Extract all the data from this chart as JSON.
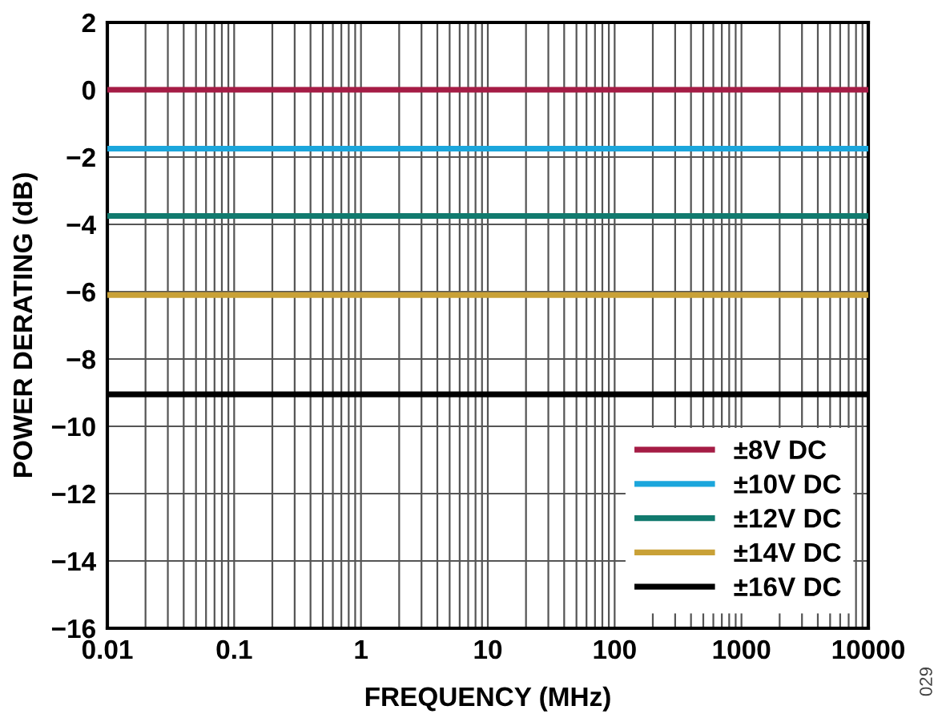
{
  "chart_data": {
    "type": "line",
    "xlabel": "FREQUENCY (MHz)",
    "ylabel": "POWER DERATING (dB)",
    "log": "x",
    "x": [
      0.01,
      10000
    ],
    "series": [
      {
        "name": "±8V DC",
        "color": "#a51c45",
        "values": [
          0,
          0
        ]
      },
      {
        "name": "±10V DC",
        "color": "#1ba6dc",
        "values": [
          -1.75,
          -1.75
        ]
      },
      {
        "name": "±12V DC",
        "color": "#117a6e",
        "values": [
          -3.75,
          -3.75
        ]
      },
      {
        "name": "±14V DC",
        "color": "#c9a137",
        "values": [
          -6.1,
          -6.1
        ]
      },
      {
        "name": "±16V DC",
        "color": "#000000",
        "values": [
          -9.05,
          -9.05
        ]
      }
    ],
    "xlim": [
      0.01,
      10000
    ],
    "xticks": [
      0.01,
      0.1,
      1,
      10,
      100,
      1000,
      10000
    ],
    "ylim": [
      -16,
      2
    ],
    "yticks": [
      {
        "value": 2,
        "label": "2"
      },
      {
        "value": 0,
        "label": "0"
      },
      {
        "value": -2,
        "label": "−2"
      },
      {
        "value": -4,
        "label": "−4"
      },
      {
        "value": -6,
        "label": "−6"
      },
      {
        "value": -8,
        "label": "−8"
      },
      {
        "value": -10,
        "label": "−10"
      },
      {
        "value": -12,
        "label": "−12"
      },
      {
        "value": -14,
        "label": "−14"
      },
      {
        "value": -16,
        "label": "−16"
      }
    ],
    "grid": true,
    "legend": "bottom right",
    "marker": "none",
    "line_style": "solid",
    "annotations": [
      "029"
    ]
  }
}
